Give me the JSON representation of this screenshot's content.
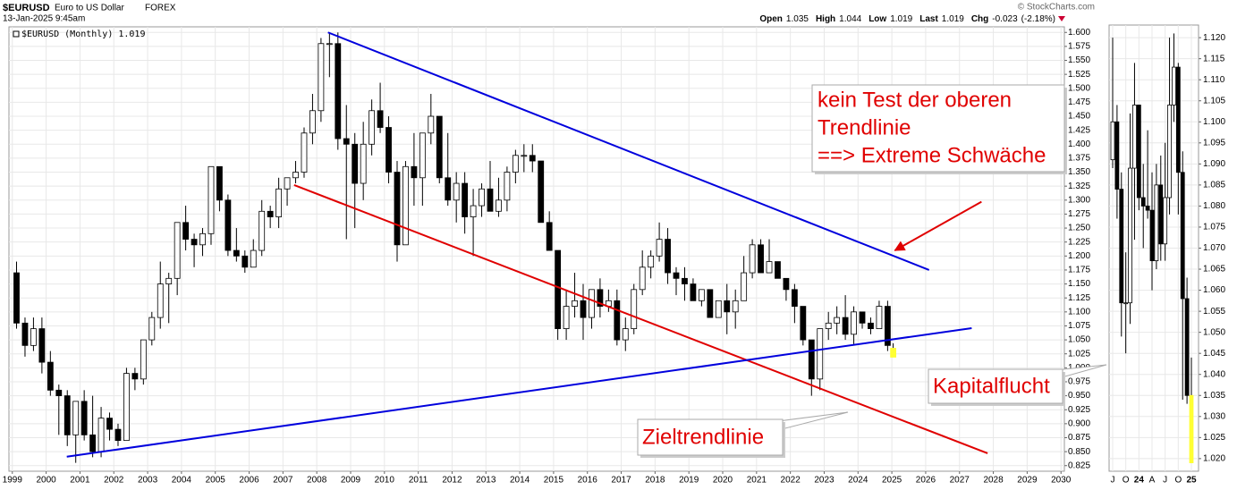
{
  "header": {
    "symbol": "$EURUSD",
    "name": "Euro to US Dollar",
    "exchange": "FOREX",
    "timestamp": "13-Jan-2025 9:45am",
    "source": "© StockCharts.com",
    "quote": [
      {
        "label": "Open",
        "value": 1.035
      },
      {
        "label": "High",
        "value": 1.044
      },
      {
        "label": "Low",
        "value": 1.019
      },
      {
        "label": "Last",
        "value": 1.019
      },
      {
        "label": "Chg",
        "value": -0.023
      }
    ],
    "change_pct": "(-2.18%)"
  },
  "chart_data": [
    {
      "type": "candlestick",
      "legend": "$EURUSD (Monthly) 1.019",
      "grid": true,
      "up_color": "#ffffff",
      "down_color": "#000000",
      "highlight_color": "#ffff33",
      "x": [
        1999.125,
        1999.375,
        1999.625,
        1999.875,
        2000.125,
        2000.375,
        2000.625,
        2000.875,
        2001.125,
        2001.375,
        2001.625,
        2001.875,
        2002.125,
        2002.375,
        2002.625,
        2002.875,
        2003.125,
        2003.375,
        2003.625,
        2003.875,
        2004.125,
        2004.375,
        2004.625,
        2004.875,
        2005.125,
        2005.375,
        2005.625,
        2005.875,
        2006.125,
        2006.375,
        2006.625,
        2006.875,
        2007.125,
        2007.375,
        2007.625,
        2007.875,
        2008.125,
        2008.375,
        2008.625,
        2008.875,
        2009.125,
        2009.375,
        2009.625,
        2009.875,
        2010.125,
        2010.375,
        2010.625,
        2010.875,
        2011.125,
        2011.375,
        2011.625,
        2011.875,
        2012.125,
        2012.375,
        2012.625,
        2012.875,
        2013.125,
        2013.375,
        2013.625,
        2013.875,
        2014.125,
        2014.375,
        2014.625,
        2014.875,
        2015.125,
        2015.375,
        2015.625,
        2015.875,
        2016.125,
        2016.375,
        2016.625,
        2016.875,
        2017.125,
        2017.375,
        2017.625,
        2017.875,
        2018.125,
        2018.375,
        2018.625,
        2018.875,
        2019.125,
        2019.375,
        2019.625,
        2019.875,
        2020.125,
        2020.375,
        2020.625,
        2020.875,
        2021.125,
        2021.375,
        2021.625,
        2021.875,
        2022.125,
        2022.375,
        2022.625,
        2022.875,
        2023.125,
        2023.375,
        2023.625,
        2023.875,
        2024.125,
        2024.375,
        2024.625,
        2024.875,
        2025.04
      ],
      "open": [
        1.17,
        1.08,
        1.04,
        1.07,
        1.01,
        0.96,
        0.95,
        0.88,
        0.94,
        0.88,
        0.85,
        0.91,
        0.89,
        0.87,
        0.99,
        0.98,
        1.05,
        1.09,
        1.15,
        1.16,
        1.26,
        1.23,
        1.22,
        1.24,
        1.36,
        1.3,
        1.21,
        1.2,
        1.18,
        1.21,
        1.28,
        1.27,
        1.32,
        1.34,
        1.35,
        1.42,
        1.46,
        1.58,
        1.58,
        1.41,
        1.4,
        1.33,
        1.4,
        1.46,
        1.43,
        1.35,
        1.22,
        1.36,
        1.34,
        1.42,
        1.45,
        1.34,
        1.3,
        1.33,
        1.27,
        1.29,
        1.32,
        1.28,
        1.3,
        1.35,
        1.38,
        1.38,
        1.37,
        1.26,
        1.21,
        1.07,
        1.11,
        1.12,
        1.09,
        1.14,
        1.11,
        1.12,
        1.05,
        1.07,
        1.14,
        1.18,
        1.2,
        1.23,
        1.17,
        1.16,
        1.15,
        1.12,
        1.14,
        1.09,
        1.12,
        1.1,
        1.12,
        1.17,
        1.22,
        1.17,
        1.19,
        1.16,
        1.14,
        1.11,
        1.05,
        0.98,
        1.07,
        1.08,
        1.09,
        1.06,
        1.1,
        1.08,
        1.07,
        1.11,
        1.035
      ],
      "high": [
        1.19,
        1.09,
        1.09,
        1.09,
        1.03,
        0.97,
        0.96,
        0.94,
        0.96,
        0.95,
        0.93,
        0.92,
        0.9,
        1.0,
        1.0,
        1.05,
        1.1,
        1.19,
        1.17,
        1.26,
        1.29,
        1.24,
        1.25,
        1.36,
        1.36,
        1.31,
        1.25,
        1.21,
        1.23,
        1.3,
        1.29,
        1.34,
        1.34,
        1.37,
        1.43,
        1.49,
        1.59,
        1.6,
        1.6,
        1.47,
        1.42,
        1.44,
        1.48,
        1.51,
        1.45,
        1.37,
        1.37,
        1.42,
        1.42,
        1.49,
        1.45,
        1.42,
        1.35,
        1.35,
        1.32,
        1.33,
        1.37,
        1.34,
        1.36,
        1.39,
        1.4,
        1.4,
        1.37,
        1.28,
        1.21,
        1.14,
        1.17,
        1.15,
        1.14,
        1.16,
        1.14,
        1.14,
        1.09,
        1.15,
        1.21,
        1.21,
        1.26,
        1.25,
        1.18,
        1.18,
        1.16,
        1.14,
        1.14,
        1.12,
        1.15,
        1.14,
        1.2,
        1.23,
        1.23,
        1.23,
        1.19,
        1.16,
        1.15,
        1.11,
        1.05,
        1.07,
        1.1,
        1.11,
        1.13,
        1.11,
        1.1,
        1.09,
        1.12,
        1.12,
        1.044
      ],
      "low": [
        1.07,
        1.02,
        1.03,
        0.99,
        0.95,
        0.88,
        0.86,
        0.83,
        0.87,
        0.84,
        0.84,
        0.87,
        0.86,
        0.87,
        0.96,
        0.97,
        1.04,
        1.07,
        1.08,
        1.13,
        1.21,
        1.18,
        1.2,
        1.22,
        1.28,
        1.2,
        1.19,
        1.17,
        1.18,
        1.2,
        1.25,
        1.25,
        1.29,
        1.33,
        1.34,
        1.4,
        1.44,
        1.52,
        1.39,
        1.23,
        1.25,
        1.3,
        1.38,
        1.42,
        1.33,
        1.19,
        1.22,
        1.29,
        1.29,
        1.4,
        1.33,
        1.29,
        1.26,
        1.24,
        1.2,
        1.27,
        1.28,
        1.27,
        1.28,
        1.33,
        1.35,
        1.35,
        1.26,
        1.21,
        1.05,
        1.05,
        1.09,
        1.05,
        1.07,
        1.09,
        1.1,
        1.04,
        1.03,
        1.06,
        1.13,
        1.16,
        1.19,
        1.15,
        1.13,
        1.12,
        1.12,
        1.11,
        1.09,
        1.09,
        1.06,
        1.07,
        1.12,
        1.16,
        1.17,
        1.17,
        1.16,
        1.12,
        1.08,
        1.04,
        0.95,
        0.96,
        1.05,
        1.06,
        1.05,
        1.04,
        1.07,
        1.06,
        1.07,
        1.03,
        1.019
      ],
      "close": [
        1.08,
        1.04,
        1.07,
        1.01,
        0.96,
        0.95,
        0.88,
        0.94,
        0.88,
        0.85,
        0.91,
        0.89,
        0.87,
        0.99,
        0.98,
        1.05,
        1.09,
        1.15,
        1.16,
        1.26,
        1.23,
        1.22,
        1.24,
        1.36,
        1.3,
        1.21,
        1.2,
        1.18,
        1.21,
        1.28,
        1.27,
        1.32,
        1.34,
        1.35,
        1.42,
        1.46,
        1.58,
        1.58,
        1.41,
        1.4,
        1.33,
        1.4,
        1.46,
        1.43,
        1.35,
        1.22,
        1.36,
        1.34,
        1.42,
        1.45,
        1.34,
        1.3,
        1.33,
        1.27,
        1.29,
        1.32,
        1.28,
        1.3,
        1.35,
        1.38,
        1.38,
        1.37,
        1.26,
        1.21,
        1.07,
        1.11,
        1.12,
        1.09,
        1.14,
        1.11,
        1.12,
        1.05,
        1.07,
        1.14,
        1.18,
        1.2,
        1.23,
        1.17,
        1.16,
        1.15,
        1.12,
        1.14,
        1.09,
        1.12,
        1.1,
        1.12,
        1.17,
        1.22,
        1.17,
        1.19,
        1.16,
        1.14,
        1.11,
        1.05,
        0.98,
        1.07,
        1.08,
        1.09,
        1.06,
        1.1,
        1.08,
        1.07,
        1.11,
        1.04,
        1.019
      ],
      "xlim": [
        1998.9,
        2030.1
      ],
      "xticks": [
        1999,
        2000,
        2001,
        2002,
        2003,
        2004,
        2005,
        2006,
        2007,
        2008,
        2009,
        2010,
        2011,
        2012,
        2013,
        2014,
        2015,
        2016,
        2017,
        2018,
        2019,
        2020,
        2021,
        2022,
        2023,
        2024,
        2025,
        2026,
        2027,
        2028,
        2029,
        2030
      ],
      "ylim": [
        0.815,
        1.61
      ],
      "yticks": [
        {
          "value": 0.825,
          "label": "0.825"
        },
        {
          "value": 0.85,
          "label": "0.850"
        },
        {
          "value": 0.875,
          "label": "0.875"
        },
        {
          "value": 0.9,
          "label": "0.900"
        },
        {
          "value": 0.925,
          "label": "0.925"
        },
        {
          "value": 0.95,
          "label": "0.950"
        },
        {
          "value": 0.975,
          "label": "0.975"
        },
        {
          "value": 1,
          "label": "1.000"
        },
        {
          "value": 1.025,
          "label": "1.025"
        },
        {
          "value": 1.05,
          "label": "1.050"
        },
        {
          "value": 1.075,
          "label": "1.075"
        },
        {
          "value": 1.1,
          "label": "1.100"
        },
        {
          "value": 1.125,
          "label": "1.125"
        },
        {
          "value": 1.15,
          "label": "1.150"
        },
        {
          "value": 1.175,
          "label": "1.175"
        },
        {
          "value": 1.2,
          "label": "1.200"
        },
        {
          "value": 1.225,
          "label": "1.225"
        },
        {
          "value": 1.25,
          "label": "1.250"
        },
        {
          "value": 1.275,
          "label": "1.275"
        },
        {
          "value": 1.3,
          "label": "1.300"
        },
        {
          "value": 1.325,
          "label": "1.325"
        },
        {
          "value": 1.35,
          "label": "1.350"
        },
        {
          "value": 1.375,
          "label": "1.375"
        },
        {
          "value": 1.4,
          "label": "1.400"
        },
        {
          "value": 1.425,
          "label": "1.425"
        },
        {
          "value": 1.45,
          "label": "1.450"
        },
        {
          "value": 1.475,
          "label": "1.475"
        },
        {
          "value": 1.5,
          "label": "1.500"
        },
        {
          "value": 1.525,
          "label": "1.525"
        },
        {
          "value": 1.55,
          "label": "1.550"
        },
        {
          "value": 1.575,
          "label": "1.575"
        },
        {
          "value": 1.6,
          "label": "1.600"
        }
      ],
      "trendlines": [
        {
          "color": "#0000dd",
          "x": [
            2008.33,
            2026.1
          ],
          "y": [
            1.6,
            1.175
          ]
        },
        {
          "color": "#e00000",
          "x": [
            2007.33,
            2027.83
          ],
          "y": [
            1.327,
            0.847
          ]
        },
        {
          "color": "#0000dd",
          "x": [
            2000.61,
            2027.36
          ],
          "y": [
            0.841,
            1.071
          ]
        }
      ],
      "arrows": [
        {
          "color": "#e00000",
          "x": [
            2027.65,
            2025.09
          ],
          "y": [
            1.297,
            1.21
          ]
        }
      ],
      "annotations": [
        {
          "color": "#e00000",
          "lines": [
            "kein Test der oberen",
            "Trendlinie",
            "==> Extreme Schwäche"
          ]
        },
        {
          "color": "#e00000",
          "lines": [
            "Kapitalflucht"
          ]
        },
        {
          "color": "#e00000",
          "lines": [
            "Zieltrendlinie"
          ]
        }
      ]
    },
    {
      "type": "candlestick",
      "grid": true,
      "up_color": "#ffffff",
      "down_color": "#000000",
      "highlight_color": "#ffff33",
      "categories": [
        "J",
        null,
        null,
        "O",
        null,
        null,
        "24",
        null,
        null,
        "A",
        null,
        null,
        "J",
        null,
        null,
        "O",
        null,
        null,
        "25"
      ],
      "open": [
        1.091,
        1.1,
        1.084,
        1.057,
        1.057,
        1.089,
        1.104,
        1.082,
        1.08,
        1.079,
        1.067,
        1.085,
        1.071,
        1.082,
        1.104,
        1.113,
        1.088,
        1.058,
        1.035
      ],
      "high": [
        1.12,
        1.104,
        1.088,
        1.069,
        1.102,
        1.114,
        1.104,
        1.09,
        1.098,
        1.088,
        1.09,
        1.092,
        1.095,
        1.12,
        1.121,
        1.114,
        1.093,
        1.063,
        1.044
      ],
      "low": [
        1.089,
        1.077,
        1.049,
        1.045,
        1.052,
        1.072,
        1.079,
        1.07,
        1.077,
        1.06,
        1.065,
        1.067,
        1.067,
        1.078,
        1.1,
        1.078,
        1.034,
        1.033,
        1.019
      ],
      "close": [
        1.1,
        1.084,
        1.057,
        1.057,
        1.089,
        1.104,
        1.082,
        1.08,
        1.079,
        1.067,
        1.085,
        1.071,
        1.082,
        1.104,
        1.113,
        1.088,
        1.058,
        1.035,
        1.019
      ],
      "ylim": [
        1.017,
        1.123
      ],
      "yticks": [
        {
          "value": 1.02,
          "label": "1.020"
        },
        {
          "value": 1.025,
          "label": "1.025"
        },
        {
          "value": 1.03,
          "label": "1.030"
        },
        {
          "value": 1.035,
          "label": "1.035"
        },
        {
          "value": 1.04,
          "label": "1.040"
        },
        {
          "value": 1.045,
          "label": "1.045"
        },
        {
          "value": 1.05,
          "label": "1.050"
        },
        {
          "value": 1.055,
          "label": "1.055"
        },
        {
          "value": 1.06,
          "label": "1.060"
        },
        {
          "value": 1.065,
          "label": "1.065"
        },
        {
          "value": 1.07,
          "label": "1.070"
        },
        {
          "value": 1.075,
          "label": "1.075"
        },
        {
          "value": 1.08,
          "label": "1.080"
        },
        {
          "value": 1.085,
          "label": "1.085"
        },
        {
          "value": 1.09,
          "label": "1.090"
        },
        {
          "value": 1.095,
          "label": "1.095"
        },
        {
          "value": 1.1,
          "label": "1.100"
        },
        {
          "value": 1.105,
          "label": "1.105"
        },
        {
          "value": 1.11,
          "label": "1.110"
        },
        {
          "value": 1.115,
          "label": "1.115"
        },
        {
          "value": 1.12,
          "label": "1.120"
        }
      ]
    }
  ]
}
